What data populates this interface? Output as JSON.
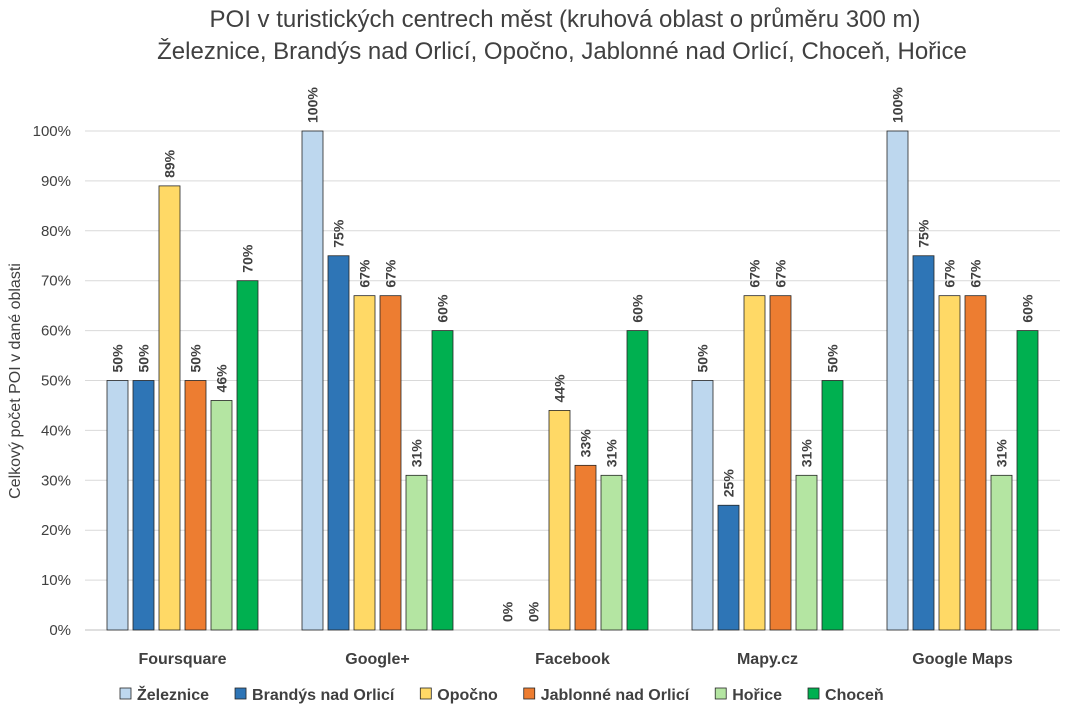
{
  "chart_data": {
    "type": "bar",
    "title_lines": [
      "POI v turistických centrech měst (kruhová oblast o průměru 300 m)",
      "Železnice, Brandýs nad Orlicí, Opočno, Jablonné nad Orlicí, Choceň, Hořice"
    ],
    "xlabel": "",
    "ylabel": "Celkový počet POI v dané oblasti",
    "ylim": [
      0,
      100
    ],
    "yticks": [
      "0%",
      "10%",
      "20%",
      "30%",
      "40%",
      "50%",
      "60%",
      "70%",
      "80%",
      "90%",
      "100%"
    ],
    "grid": true,
    "legend_position": "bottom",
    "categories": [
      "Foursquare",
      "Google+",
      "Facebook",
      "Mapy.cz",
      "Google Maps"
    ],
    "series": [
      {
        "name": "Železnice",
        "color": "#bdd7ee",
        "values": [
          50,
          100,
          0,
          50,
          100
        ],
        "labels": [
          "50%",
          "100%",
          "0%",
          "50%",
          "100%"
        ]
      },
      {
        "name": "Brandýs nad Orlicí",
        "color": "#2e75b6",
        "values": [
          50,
          75,
          0,
          25,
          75
        ],
        "labels": [
          "50%",
          "75%",
          "0%",
          "25%",
          "75%"
        ]
      },
      {
        "name": "Opočno",
        "color": "#ffd966",
        "values": [
          89,
          67,
          44,
          67,
          67
        ],
        "labels": [
          "89%",
          "67%",
          "44%",
          "67%",
          "67%"
        ]
      },
      {
        "name": "Jablonné nad Orlicí",
        "color": "#ed7d31",
        "values": [
          50,
          67,
          33,
          67,
          67
        ],
        "labels": [
          "50%",
          "67%",
          "33%",
          "67%",
          "67%"
        ]
      },
      {
        "name": "Hořice",
        "color": "#b4e5a2",
        "values": [
          46,
          31,
          31,
          31,
          31
        ],
        "labels": [
          "46%",
          "31%",
          "31%",
          "31%",
          "31%"
        ]
      },
      {
        "name": "Choceň",
        "color": "#00b050",
        "values": [
          70,
          60,
          60,
          50,
          60
        ],
        "labels": [
          "70%",
          "60%",
          "60%",
          "50%",
          "60%"
        ]
      }
    ]
  }
}
